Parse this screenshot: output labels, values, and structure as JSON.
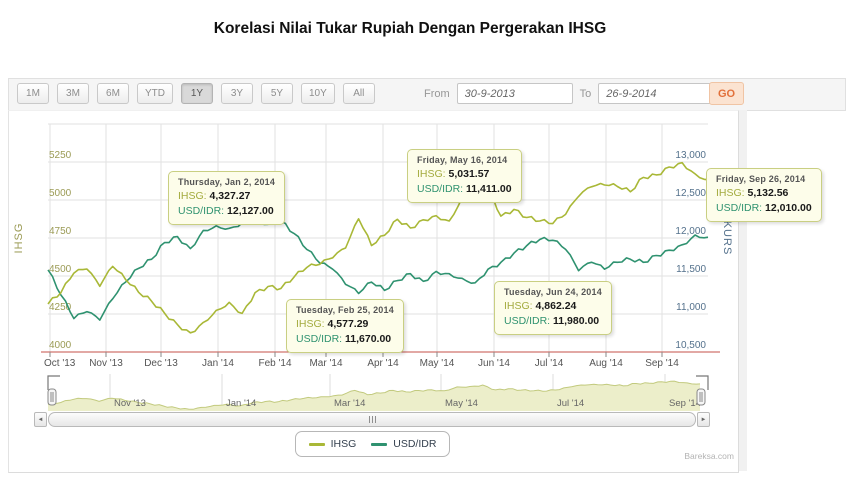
{
  "page": {
    "title": "Korelasi Nilai Tukar Rupiah Dengan Pergerakan IHSG",
    "watermark": "Bareksa.com"
  },
  "toolbar": {
    "range_buttons": [
      {
        "label": "1M",
        "selected": false
      },
      {
        "label": "3M",
        "selected": false
      },
      {
        "label": "6M",
        "selected": false
      },
      {
        "label": "YTD",
        "selected": false
      },
      {
        "label": "1Y",
        "selected": true
      },
      {
        "label": "3Y",
        "selected": false
      },
      {
        "label": "5Y",
        "selected": false
      },
      {
        "label": "10Y",
        "selected": false
      },
      {
        "label": "All",
        "selected": false
      }
    ],
    "from_label": "From",
    "from_value": "30-9-2013",
    "to_label": "To",
    "to_value": "26-9-2014",
    "go_label": "GO"
  },
  "icons": {
    "scrollbar_left": "◄",
    "scrollbar_right": "►"
  },
  "chart_data": {
    "type": "line",
    "title": "",
    "x_start": "30-9-2013",
    "x_end": "26-9-2014",
    "x_unit": "weekly",
    "x_labels": [
      "Oct '13",
      "Nov '13",
      "Dec '13",
      "Jan '14",
      "Feb '14",
      "Mar '14",
      "Apr '14",
      "May '14",
      "Jun '14",
      "Jul '14",
      "Aug '14",
      "Sep '14"
    ],
    "grid": true,
    "left_axis": {
      "title": "IHSG",
      "ticks": [
        "5250",
        "5000",
        "4750",
        "4500",
        "4250",
        "4000"
      ],
      "min": 4000,
      "max": 5250,
      "color": "#9b9b55"
    },
    "right_axis": {
      "title": "KURS",
      "ticks": [
        "13,000",
        "12,500",
        "12,000",
        "11,500",
        "11,000",
        "10,500"
      ],
      "min": 10500,
      "max": 13000,
      "color": "#54718c"
    },
    "series": [
      {
        "name": "IHSG",
        "axis": "left",
        "color": "#a9b837",
        "values": [
          4316,
          4390,
          4519,
          4546,
          4432,
          4563,
          4476,
          4393,
          4335,
          4256,
          4181,
          4126,
          4195,
          4274,
          4327,
          4254,
          4391,
          4431,
          4418,
          4492,
          4556,
          4577,
          4620,
          4684,
          4876,
          4700,
          4768,
          4873,
          4816,
          4870,
          4897,
          4862,
          5014,
          5031,
          5091,
          4894,
          4938,
          4885,
          4862,
          4845,
          4905,
          5024,
          5087,
          5099,
          5089,
          5054,
          5149,
          5165,
          5217,
          5246,
          5172,
          5133
        ]
      },
      {
        "name": "USD/IDR",
        "axis": "right",
        "color": "#2f9270",
        "values": [
          11580,
          11250,
          10940,
          11030,
          10920,
          11200,
          11420,
          11600,
          11720,
          11940,
          12020,
          11860,
          12100,
          12160,
          12127,
          12200,
          12270,
          12180,
          12220,
          12060,
          11850,
          11670,
          11590,
          11390,
          11270,
          11420,
          11310,
          11440,
          11530,
          11430,
          11560,
          11530,
          11470,
          11411,
          11590,
          11680,
          11800,
          11900,
          11980,
          11970,
          11850,
          11570,
          11680,
          11590,
          11680,
          11720,
          11680,
          11770,
          11840,
          11910,
          12040,
          12010
        ]
      }
    ],
    "annotations": [
      {
        "date": "Thursday, Jan 2, 2014",
        "ihsg_label": "IHSG:",
        "ihsg": "4,327.27",
        "usd_label": "USD/IDR:",
        "usd": "12,127.00"
      },
      {
        "date": "Friday, May 16, 2014",
        "ihsg_label": "IHSG:",
        "ihsg": "5,031.57",
        "usd_label": "USD/IDR:",
        "usd": "11,411.00"
      },
      {
        "date": "Tuesday, Feb 25, 2014",
        "ihsg_label": "IHSG:",
        "ihsg": "4,577.29",
        "usd_label": "USD/IDR:",
        "usd": "11,670.00"
      },
      {
        "date": "Tuesday, Jun 24, 2014",
        "ihsg_label": "IHSG:",
        "ihsg": "4,862.24",
        "usd_label": "USD/IDR:",
        "usd": "11,980.00"
      },
      {
        "date": "Friday, Sep 26, 2014",
        "ihsg_label": "IHSG:",
        "ihsg": "5,132.56",
        "usd_label": "USD/IDR:",
        "usd": "12,010.00"
      }
    ],
    "navigator_labels": [
      "Nov '13",
      "Jan '14",
      "Mar '14",
      "May '14",
      "Jul '14",
      "Sep '14"
    ],
    "legend": {
      "position": "bottom-center",
      "items": [
        {
          "label": "IHSG",
          "color": "#a9b837"
        },
        {
          "label": "USD/IDR",
          "color": "#2f9270"
        }
      ]
    }
  },
  "colors": {
    "ihsg": "#a9b837",
    "usdidr": "#2f9270",
    "x_axis_line": "#c4524a",
    "gridline": "#e2e2e2",
    "tooltip_bg": "#fdfdea",
    "tooltip_border": "#c9cf82",
    "navigator_fill": "#eceeca",
    "go_accent": "#e2703a"
  }
}
